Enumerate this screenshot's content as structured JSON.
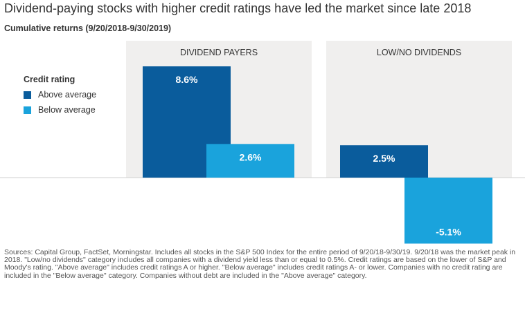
{
  "title": "Dividend-paying stocks with higher credit ratings have led the market since late 2018",
  "subtitle": "Cumulative returns (9/20/2018-9/30/2019)",
  "legend": {
    "title": "Credit rating",
    "items": [
      {
        "label": "Above average",
        "color": "#0a5c9c"
      },
      {
        "label": "Below average",
        "color": "#1aa3dc"
      }
    ]
  },
  "chart_data": {
    "type": "bar",
    "categories": [
      "DIVIDEND PAYERS",
      "LOW/NO DIVIDENDS"
    ],
    "series": [
      {
        "name": "Above average",
        "values": [
          8.6,
          2.5
        ],
        "labels": [
          "8.6%",
          "2.5%"
        ],
        "color": "#0a5c9c"
      },
      {
        "name": "Below average",
        "values": [
          2.6,
          -5.1
        ],
        "labels": [
          "2.6%",
          "-5.1%"
        ],
        "color": "#1aa3dc"
      }
    ],
    "ylim": [
      -5.1,
      8.6
    ],
    "panel_color": "#f0efee",
    "legend_position": "left"
  },
  "footnote": "Sources: Capital Group, FactSet, Morningstar. Includes all stocks in the S&P 500 Index for the entire period of 9/20/18-9/30/19. 9/20/18 was the market peak in 2018. \"Low/no dividends\" category includes all companies with a dividend yield less than or equal to 0.5%. Credit ratings are based on the lower of S&P and Moody's rating. \"Above average\" includes credit ratings A or higher. \"Below average\" includes credit ratings A- or lower. Companies with no credit rating are included in the \"Below average\" category. Companies without debt are included in the \"Above average\" category."
}
